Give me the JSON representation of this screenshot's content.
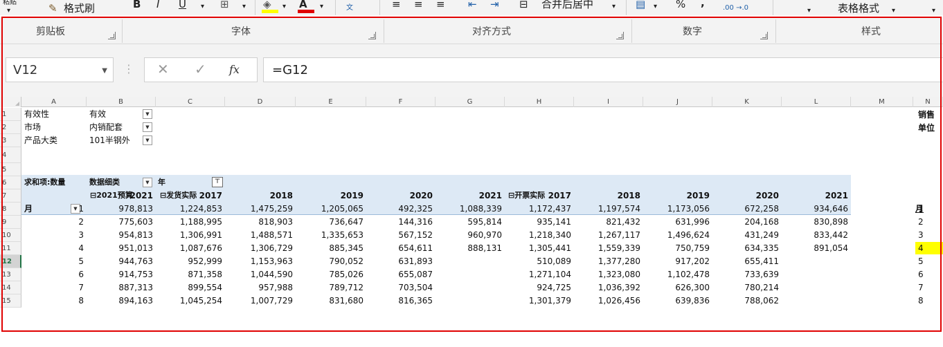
{
  "ribbon": {
    "clipboard_item": "格式刷",
    "paste_partial": "粘贴",
    "bold": "B",
    "italic": "I",
    "underline": "U",
    "merge_center": "合并后居中",
    "percent": "%",
    "comma": ",",
    "decimals": ".00 →.0",
    "table_format": "表格格式",
    "groups": [
      "剪贴板",
      "字体",
      "对齐方式",
      "数字",
      "样式"
    ]
  },
  "formula_bar": {
    "name_box": "V12",
    "cancel_icon": "✕",
    "enter_icon": "✓",
    "fx": "fx",
    "formula": "=G12"
  },
  "columns": [
    "A",
    "B",
    "C",
    "D",
    "E",
    "F",
    "G",
    "H",
    "I",
    "J",
    "K",
    "L",
    "M",
    "N"
  ],
  "filters": [
    {
      "label": "有效性",
      "value": "有效"
    },
    {
      "label": "市场",
      "value": "内销配套"
    },
    {
      "label": "产品大类",
      "value": "101半钢外"
    }
  ],
  "side_labels": {
    "n1": "销售",
    "n2": "单位"
  },
  "pivot": {
    "value_label": "求和项:数量",
    "detail_field": "数据细类",
    "year_field": "年",
    "group_budget": "⊟2021预算",
    "group_shipped": "⊟发货实际",
    "group_invoiced": "⊟开票实际",
    "row_field": "月",
    "year_headers": [
      "2021",
      "2017",
      "2018",
      "2019",
      "2020",
      "2021",
      "2017",
      "2018",
      "2019",
      "2020",
      "2021"
    ],
    "side_header": "月",
    "rows": [
      {
        "m": "1",
        "v": [
          "978,813",
          "1,224,853",
          "1,475,259",
          "1,205,065",
          "492,325",
          "1,088,339",
          "1,172,437",
          "1,197,574",
          "1,173,056",
          "672,258",
          "934,646"
        ],
        "n": "1"
      },
      {
        "m": "2",
        "v": [
          "775,603",
          "1,188,995",
          "818,903",
          "736,647",
          "144,316",
          "595,814",
          "935,141",
          "821,432",
          "631,996",
          "204,168",
          "830,898"
        ],
        "n": "2"
      },
      {
        "m": "3",
        "v": [
          "954,813",
          "1,306,991",
          "1,488,571",
          "1,335,653",
          "567,152",
          "960,970",
          "1,218,340",
          "1,267,117",
          "1,496,624",
          "431,249",
          "833,442"
        ],
        "n": "3"
      },
      {
        "m": "4",
        "v": [
          "951,013",
          "1,087,676",
          "1,306,729",
          "885,345",
          "654,611",
          "888,131",
          "1,305,441",
          "1,559,339",
          "750,759",
          "634,335",
          "891,054"
        ],
        "n": "4"
      },
      {
        "m": "5",
        "v": [
          "944,763",
          "952,999",
          "1,153,963",
          "790,052",
          "631,893",
          "",
          "510,089",
          "1,377,280",
          "917,202",
          "655,411",
          ""
        ],
        "n": "5"
      },
      {
        "m": "6",
        "v": [
          "914,753",
          "871,358",
          "1,044,590",
          "785,026",
          "655,087",
          "",
          "1,271,104",
          "1,323,080",
          "1,102,478",
          "733,639",
          ""
        ],
        "n": "6"
      },
      {
        "m": "7",
        "v": [
          "887,313",
          "899,554",
          "957,988",
          "789,712",
          "703,504",
          "",
          "924,725",
          "1,036,392",
          "626,300",
          "780,214",
          ""
        ],
        "n": "7"
      },
      {
        "m": "8",
        "v": [
          "894,163",
          "1,045,254",
          "1,007,729",
          "831,680",
          "816,365",
          "",
          "1,301,379",
          "1,026,456",
          "639,836",
          "788,062",
          ""
        ],
        "n": "8"
      }
    ]
  },
  "row_numbers": [
    "1",
    "2",
    "3",
    "4",
    "5",
    "6",
    "7",
    "8",
    "9",
    "10",
    "11",
    "12",
    "13",
    "14",
    "15"
  ]
}
